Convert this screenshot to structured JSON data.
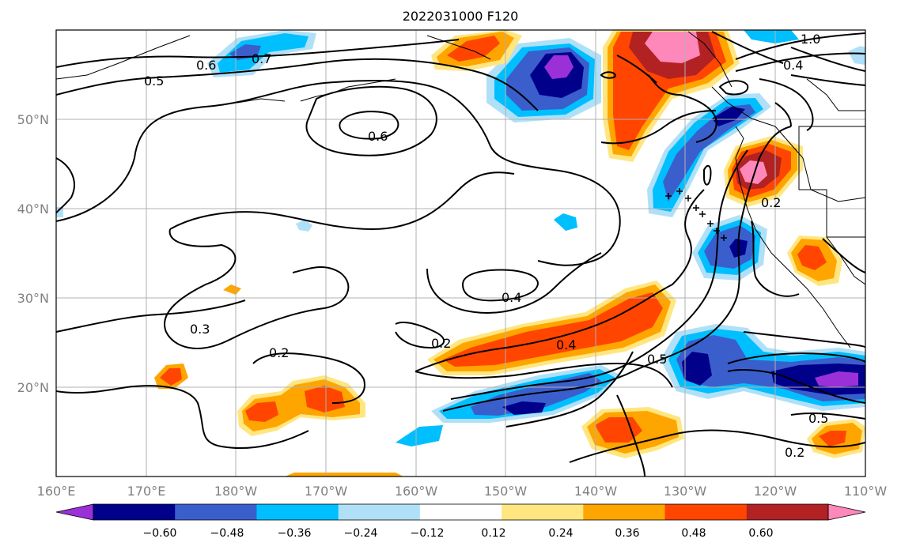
{
  "title": "2022031000 F120",
  "lat_labels": [
    "50°N",
    "40°N",
    "30°N",
    "20°N"
  ],
  "lon_labels": [
    "160°E",
    "170°E",
    "180°W",
    "170°W",
    "160°W",
    "150°W",
    "140°W",
    "130°W",
    "120°W",
    "110°W"
  ],
  "contour_labels": [
    "0.7",
    "0.6",
    "0.5",
    "0.6",
    "0.4",
    "0.3",
    "0.2",
    "0.2",
    "0.4",
    "0.5",
    "1.0",
    "0.4",
    "0.2",
    "0.5",
    "0.2"
  ],
  "colorbar": {
    "ticks": [
      "−0.60",
      "−0.48",
      "−0.36",
      "−0.24",
      "−0.12",
      "0.12",
      "0.24",
      "0.36",
      "0.48",
      "0.60"
    ],
    "colors": [
      "#9b30d9",
      "#00008b",
      "#3a5fcd",
      "#00bfff",
      "#b0e0f8",
      "#ffffff",
      "#ffe680",
      "#ffa500",
      "#ff4500",
      "#b22222",
      "#ff88bb"
    ]
  },
  "colors": {
    "purple": "#9b30d9",
    "navy": "#00008b",
    "royal": "#3a5fcd",
    "sky": "#00bfff",
    "pale_blue": "#b0e0f8",
    "pale_yellow": "#ffe680",
    "orange": "#ffa500",
    "red_orange": "#ff4500",
    "dark_red": "#b22222",
    "pink": "#ff88bb"
  }
}
